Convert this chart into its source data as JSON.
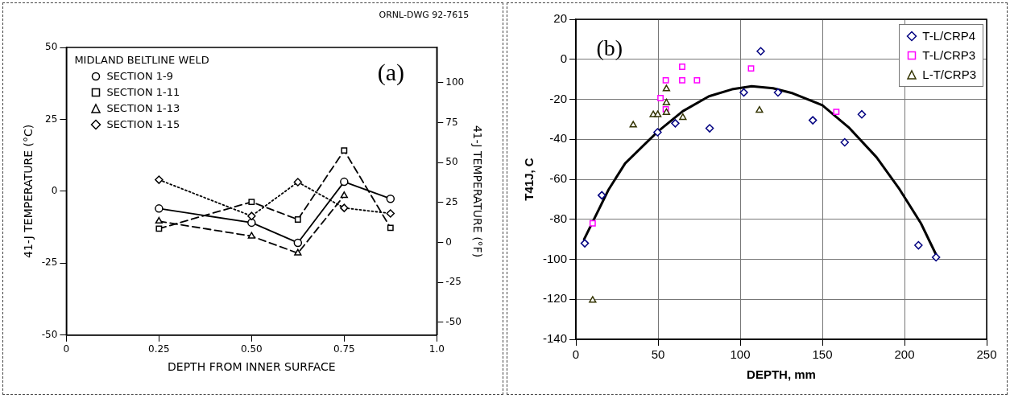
{
  "chart_data": [
    {
      "type": "line",
      "xlabel": "DEPTH FROM INNER SURFACE",
      "ylabel": "41-J TEMPERATURE (°C)",
      "y2label": "41-J TEMPERATURE (°F)",
      "legend_title": "MIDLAND BELTLINE WELD",
      "legend": "top left",
      "grid": false,
      "annotations": [
        "ORNL-DWG 92-7615",
        "(a)"
      ],
      "x": [
        0.25,
        0.5,
        0.625,
        0.75,
        0.875
      ],
      "xlim": [
        0,
        1
      ],
      "xticks": [
        0,
        0.25,
        {
          "value": 0.5,
          "label": "0.50"
        },
        0.75,
        {
          "value": 1,
          "label": "1.0"
        }
      ],
      "ylim": [
        -50,
        50
      ],
      "yticks": [
        -50,
        -25,
        0,
        25,
        50
      ],
      "y2lim": [
        -58,
        122
      ],
      "y2ticks": [
        -50,
        -25,
        0,
        25,
        50,
        75,
        100
      ],
      "series": [
        {
          "name": "SECTION 1-9",
          "color": "#000000",
          "marker": "circle",
          "line_style": "solid",
          "values": [
            -6,
            -10.9,
            -17.9,
            3.3,
            -2.6
          ]
        },
        {
          "name": "SECTION 1-11",
          "color": "#000000",
          "marker": "square",
          "line_style": "dashed",
          "values": [
            -13,
            -3.7,
            -9.8,
            14.2,
            -12.7
          ]
        },
        {
          "name": "SECTION 1-13",
          "color": "#000000",
          "marker": "triangle",
          "line_style": "dashed",
          "values": [
            -10.4,
            -15.6,
            -21.5,
            -1.5,
            null
          ]
        },
        {
          "name": "SECTION 1-15",
          "color": "#000000",
          "marker": "diamond",
          "line_style": "dotted",
          "values": [
            4,
            -8.6,
            3.2,
            -5.8,
            -7.7
          ]
        }
      ]
    },
    {
      "type": "scatter",
      "xlabel": "DEPTH, mm",
      "ylabel": "T41J, C",
      "legend": "top right",
      "grid": true,
      "annotations": [
        "(b)"
      ],
      "xlim": [
        0,
        250
      ],
      "xticks": [
        0,
        50,
        100,
        150,
        200,
        250
      ],
      "ylim": [
        -140,
        20
      ],
      "yticks": [
        -140,
        -120,
        -100,
        -80,
        -60,
        -40,
        -20,
        0,
        20
      ],
      "series": [
        {
          "name": "T-L/CRP4",
          "color": "#000080",
          "marker": "diamond",
          "x": [
            5.4,
            15.8,
            49.7,
            60.5,
            81.4,
            102.2,
            112.5,
            123,
            144.2,
            163.6,
            174,
            208.5,
            219.2
          ],
          "values": [
            -92,
            -68,
            -36.5,
            -32,
            -34.5,
            -16.6,
            4,
            -16.6,
            -30.5,
            -41.5,
            -27.5,
            -93,
            -99
          ]
        },
        {
          "name": "T-L/CRP3",
          "color": "#ff00ff",
          "marker": "square",
          "x": [
            10.2,
            51.5,
            54.7,
            54.7,
            64.7,
            64.7,
            73.7,
            106.6,
            158.5
          ],
          "values": [
            -82,
            -19.4,
            -10.5,
            -25,
            -3.7,
            -10.5,
            -10.5,
            -4.6,
            -26.3
          ]
        },
        {
          "name": "L-T/CRP3",
          "color": "#333300",
          "marker": "triangle",
          "x": [
            10.2,
            34.9,
            47.1,
            49.8,
            55.1,
            55.1,
            55.1,
            65.1,
            111.7
          ],
          "values": [
            -120.5,
            -32.9,
            -27.7,
            -27.7,
            -14.8,
            -21.8,
            -26.6,
            -29.1,
            -25.5
          ]
        },
        {
          "type": "line",
          "color": "#000000",
          "marker": "none",
          "line_style": "solid",
          "x": [
            5,
            20,
            30,
            50,
            65,
            81,
            95,
            107,
            120,
            132,
            150,
            166,
            183,
            197,
            210,
            220
          ],
          "values": [
            -90,
            -65,
            -52,
            -36,
            -26,
            -18.5,
            -15,
            -13.5,
            -14.5,
            -17,
            -23,
            -34,
            -49,
            -65,
            -82,
            -99
          ]
        }
      ]
    }
  ]
}
